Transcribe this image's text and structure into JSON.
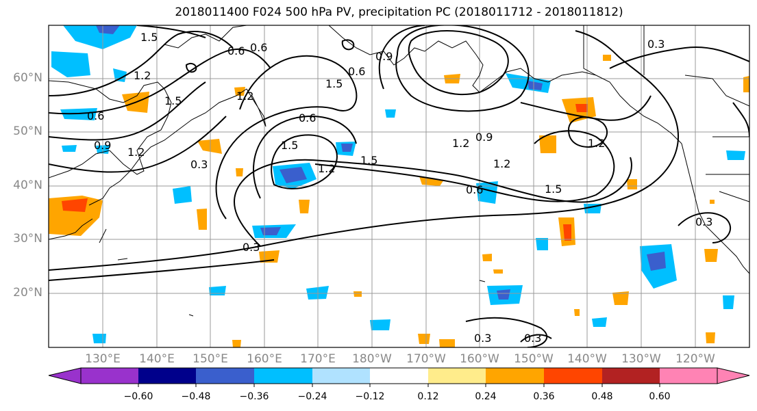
{
  "title": "2018011400 F024 500 hPa PV, precipitation PC (2018011712 - 2018011812)",
  "lat_labels": [
    "60°N",
    "50°N",
    "40°N",
    "30°N",
    "20°N"
  ],
  "lon_labels": [
    "130°E",
    "140°E",
    "150°E",
    "160°E",
    "170°E",
    "180°W",
    "170°W",
    "160°W",
    "150°W",
    "140°W",
    "130°W",
    "120°W"
  ],
  "contour_labels": [
    {
      "text": "1.5"
    },
    {
      "text": "0.6"
    },
    {
      "text": "0.6"
    },
    {
      "text": "1.5"
    },
    {
      "text": "1.2"
    },
    {
      "text": "0.3"
    },
    {
      "text": "1.2"
    },
    {
      "text": "1.5"
    },
    {
      "text": "0.6"
    },
    {
      "text": "0.9"
    },
    {
      "text": "0.6"
    },
    {
      "text": "0.9"
    },
    {
      "text": "1.2"
    },
    {
      "text": "0.3"
    },
    {
      "text": "1.5"
    },
    {
      "text": "1.2"
    },
    {
      "text": "1.5"
    },
    {
      "text": "0.6"
    },
    {
      "text": "1.2"
    },
    {
      "text": "0.9"
    },
    {
      "text": "1.2"
    },
    {
      "text": "1.2"
    },
    {
      "text": "1.5"
    },
    {
      "text": "0.6"
    },
    {
      "text": "0.3"
    },
    {
      "text": "0.3"
    },
    {
      "text": "0.3"
    },
    {
      "text": "0.3"
    }
  ],
  "colorbar": {
    "colors": [
      "#9932cc",
      "#00008b",
      "#3a5fcd",
      "#00bfff",
      "#b0e2ff",
      "#ffffff",
      "#ffec8b",
      "#ffa500",
      "#ff4500",
      "#b22222",
      "#ff83b4"
    ],
    "labels": [
      "−0.60",
      "−0.48",
      "−0.36",
      "−0.24",
      "−0.12",
      "0.12",
      "0.24",
      "0.36",
      "0.48",
      "0.60"
    ]
  },
  "colors": {
    "positive_shade": "#ffa500",
    "negative_shade": "#00bfff",
    "contour": "#000000",
    "grid": "#999999",
    "axis_labels": "#888888"
  }
}
